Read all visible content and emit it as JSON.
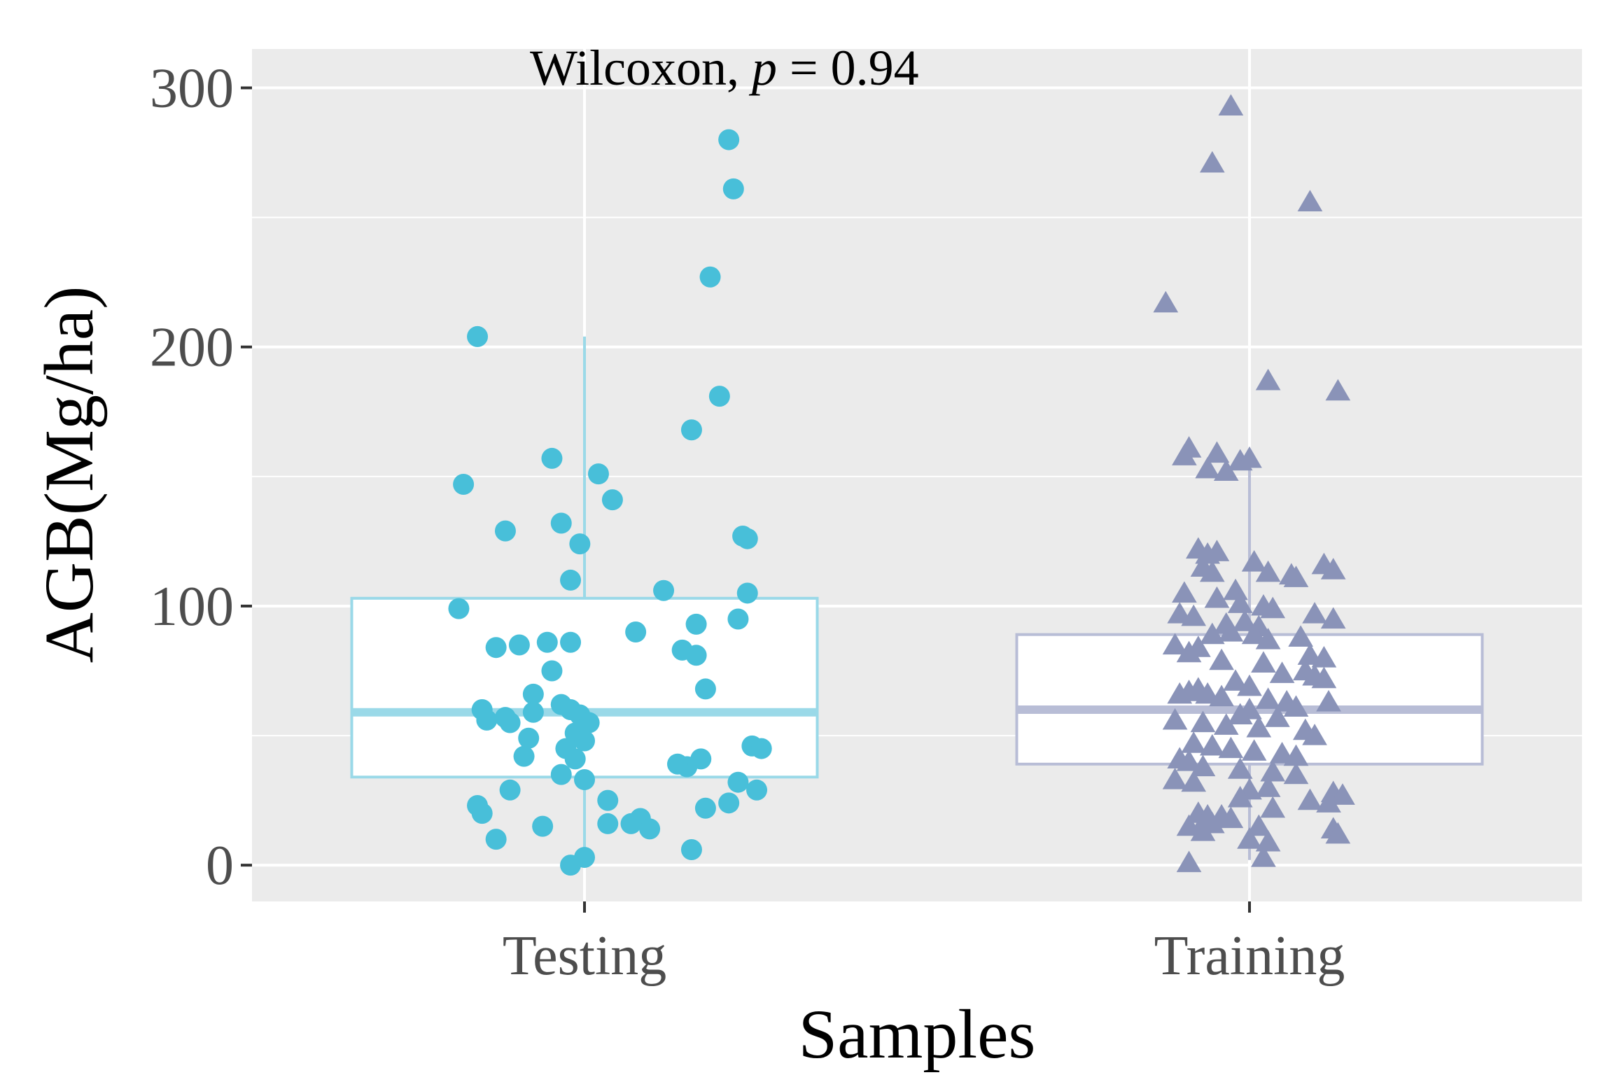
{
  "chart_data": {
    "type": "box",
    "title": "",
    "xlabel": "Samples",
    "ylabel": "AGB(Mg/ha)",
    "ylim": [
      -14,
      315
    ],
    "yticks": [
      0,
      100,
      200,
      300
    ],
    "ytick_labels": [
      "0",
      "100",
      "200",
      "300"
    ],
    "grid": true,
    "annotation": {
      "prefix": "Wilcoxon, ",
      "p_symbol": "p",
      "equals": " = ",
      "value": "0.94"
    },
    "categories": [
      "Testing",
      "Training"
    ],
    "colors": {
      "Testing": "#48bfd9",
      "Training": "#8a93b8",
      "Testing_box": "#9ad9e8",
      "Training_box": "#b8bdd6",
      "panel": "#ebebeb",
      "grid": "#ffffff"
    },
    "series": [
      {
        "name": "Testing",
        "marker": "circle",
        "box": {
          "q1": 34,
          "median": 59,
          "q3": 103,
          "whisker_low": 0,
          "whisker_high": 204
        },
        "points": [
          [
            0.31,
            280
          ],
          [
            0.32,
            261
          ],
          [
            0.27,
            227
          ],
          [
            -0.23,
            204
          ],
          [
            0.29,
            181
          ],
          [
            0.23,
            168
          ],
          [
            -0.07,
            157
          ],
          [
            0.03,
            151
          ],
          [
            -0.26,
            147
          ],
          [
            0.06,
            141
          ],
          [
            -0.05,
            132
          ],
          [
            -0.17,
            129
          ],
          [
            0.34,
            127
          ],
          [
            0.35,
            126
          ],
          [
            -0.01,
            124
          ],
          [
            -0.03,
            110
          ],
          [
            0.17,
            106
          ],
          [
            0.35,
            105
          ],
          [
            -0.27,
            99
          ],
          [
            0.33,
            95
          ],
          [
            0.24,
            93
          ],
          [
            0.11,
            90
          ],
          [
            0.21,
            83
          ],
          [
            0.24,
            81
          ],
          [
            -0.08,
            86
          ],
          [
            -0.03,
            86
          ],
          [
            -0.14,
            85
          ],
          [
            -0.19,
            84
          ],
          [
            -0.07,
            75
          ],
          [
            0.26,
            68
          ],
          [
            -0.11,
            66
          ],
          [
            -0.05,
            62
          ],
          [
            -0.03,
            60
          ],
          [
            -0.01,
            58
          ],
          [
            -0.22,
            60
          ],
          [
            -0.17,
            57
          ],
          [
            -0.21,
            56
          ],
          [
            -0.11,
            59
          ],
          [
            0.01,
            55
          ],
          [
            -0.16,
            55
          ],
          [
            -0.02,
            51
          ],
          [
            -0.12,
            49
          ],
          [
            0.0,
            48
          ],
          [
            -0.04,
            45
          ],
          [
            0.36,
            46
          ],
          [
            0.38,
            45
          ],
          [
            -0.13,
            42
          ],
          [
            -0.02,
            41
          ],
          [
            0.22,
            38
          ],
          [
            0.25,
            41
          ],
          [
            0.2,
            39
          ],
          [
            0.33,
            32
          ],
          [
            -0.05,
            35
          ],
          [
            0.0,
            33
          ],
          [
            -0.16,
            29
          ],
          [
            0.37,
            29
          ],
          [
            0.05,
            25
          ],
          [
            -0.23,
            23
          ],
          [
            0.26,
            22
          ],
          [
            0.31,
            24
          ],
          [
            -0.22,
            20
          ],
          [
            0.05,
            16
          ],
          [
            0.12,
            18
          ],
          [
            -0.09,
            15
          ],
          [
            0.14,
            14
          ],
          [
            0.1,
            16
          ],
          [
            -0.19,
            10
          ],
          [
            0.23,
            6
          ],
          [
            0.0,
            3
          ],
          [
            -0.03,
            0
          ]
        ]
      },
      {
        "name": "Training",
        "marker": "triangle",
        "box": {
          "q1": 39,
          "median": 60,
          "q3": 89,
          "whisker_low": 2,
          "whisker_high": 158
        },
        "points": [
          [
            -0.04,
            293
          ],
          [
            -0.08,
            271
          ],
          [
            0.13,
            256
          ],
          [
            -0.18,
            217
          ],
          [
            0.04,
            187
          ],
          [
            0.19,
            183
          ],
          [
            -0.13,
            161
          ],
          [
            -0.14,
            158
          ],
          [
            -0.07,
            159
          ],
          [
            -0.05,
            152
          ],
          [
            -0.09,
            153
          ],
          [
            -0.02,
            156
          ],
          [
            0.0,
            157
          ],
          [
            -0.11,
            122
          ],
          [
            -0.09,
            120
          ],
          [
            -0.07,
            121
          ],
          [
            -0.1,
            115
          ],
          [
            -0.08,
            113
          ],
          [
            0.16,
            116
          ],
          [
            0.18,
            114
          ],
          [
            0.01,
            117
          ],
          [
            0.04,
            113
          ],
          [
            0.09,
            112
          ],
          [
            0.1,
            111
          ],
          [
            -0.03,
            106
          ],
          [
            -0.14,
            105
          ],
          [
            -0.07,
            103
          ],
          [
            -0.02,
            101
          ],
          [
            0.03,
            100
          ],
          [
            0.05,
            99
          ],
          [
            -0.12,
            96
          ],
          [
            -0.15,
            97
          ],
          [
            0.14,
            97
          ],
          [
            0.18,
            95
          ],
          [
            -0.05,
            93
          ],
          [
            -0.01,
            94
          ],
          [
            0.02,
            92
          ],
          [
            -0.04,
            90
          ],
          [
            -0.08,
            89
          ],
          [
            0.01,
            89
          ],
          [
            0.04,
            87
          ],
          [
            0.11,
            88
          ],
          [
            -0.16,
            85
          ],
          [
            -0.11,
            84
          ],
          [
            -0.13,
            82
          ],
          [
            0.13,
            81
          ],
          [
            0.16,
            80
          ],
          [
            -0.06,
            79
          ],
          [
            0.03,
            78
          ],
          [
            0.12,
            75
          ],
          [
            0.07,
            74
          ],
          [
            0.14,
            73
          ],
          [
            0.16,
            72
          ],
          [
            -0.03,
            71
          ],
          [
            0.0,
            69
          ],
          [
            -0.11,
            68
          ],
          [
            -0.15,
            66
          ],
          [
            -0.13,
            67
          ],
          [
            -0.09,
            66
          ],
          [
            -0.06,
            65
          ],
          [
            0.04,
            64
          ],
          [
            0.08,
            63
          ],
          [
            0.17,
            63
          ],
          [
            0.1,
            61
          ],
          [
            0.0,
            60
          ],
          [
            -0.02,
            58
          ],
          [
            0.06,
            57
          ],
          [
            -0.16,
            56
          ],
          [
            -0.1,
            55
          ],
          [
            -0.05,
            54
          ],
          [
            0.02,
            53
          ],
          [
            0.12,
            52
          ],
          [
            0.14,
            50
          ],
          [
            -0.12,
            47
          ],
          [
            -0.08,
            46
          ],
          [
            -0.04,
            45
          ],
          [
            0.01,
            44
          ],
          [
            0.07,
            43
          ],
          [
            0.1,
            42
          ],
          [
            -0.15,
            41
          ],
          [
            -0.13,
            40
          ],
          [
            -0.1,
            38
          ],
          [
            -0.02,
            37
          ],
          [
            0.05,
            36
          ],
          [
            0.1,
            35
          ],
          [
            -0.16,
            33
          ],
          [
            -0.12,
            32
          ],
          [
            0.04,
            30
          ],
          [
            0.0,
            29
          ],
          [
            0.18,
            28
          ],
          [
            0.2,
            27
          ],
          [
            -0.02,
            26
          ],
          [
            0.13,
            25
          ],
          [
            0.17,
            24
          ],
          [
            0.05,
            22
          ],
          [
            -0.11,
            20
          ],
          [
            -0.09,
            19
          ],
          [
            -0.06,
            19
          ],
          [
            -0.04,
            18
          ],
          [
            -0.1,
            16
          ],
          [
            -0.08,
            16
          ],
          [
            -0.13,
            15
          ],
          [
            0.02,
            15
          ],
          [
            0.18,
            14
          ],
          [
            -0.1,
            13
          ],
          [
            0.19,
            12
          ],
          [
            0.0,
            10
          ],
          [
            0.04,
            9
          ],
          [
            0.03,
            3
          ],
          [
            -0.13,
            1
          ]
        ]
      }
    ]
  }
}
